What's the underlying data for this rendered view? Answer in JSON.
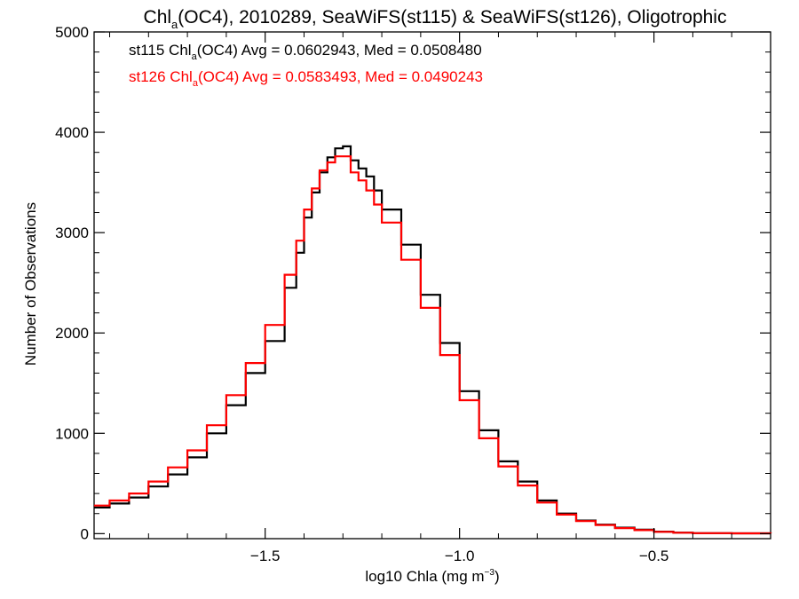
{
  "chart_data": {
    "type": "line",
    "title": {
      "pre": "Chl",
      "sub": "a",
      "post": "(OC4), 2010289, SeaWiFS(st115) & SeaWiFS(st126), Oligotrophic"
    },
    "xlabel": {
      "pre": "log10 Chla (mg m",
      "sup": "−3",
      "post": ")"
    },
    "ylabel": "Number of Observations",
    "xlim": [
      -1.94,
      -0.2
    ],
    "ylim": [
      -50,
      5000
    ],
    "xticks": [
      {
        "value": -1.5,
        "label": "−1.5"
      },
      {
        "value": -1.0,
        "label": "−1.0"
      },
      {
        "value": -0.5,
        "label": "−0.5"
      }
    ],
    "yticks": [
      {
        "value": 0,
        "label": "0"
      },
      {
        "value": 1000,
        "label": "1000"
      },
      {
        "value": 2000,
        "label": "2000"
      },
      {
        "value": 3000,
        "label": "3000"
      },
      {
        "value": 4000,
        "label": "4000"
      },
      {
        "value": 5000,
        "label": "5000"
      }
    ],
    "annotations": [
      {
        "pre": "st115 Chl",
        "sub": "a",
        "post": "(OC4) Avg = 0.0602943, Med = 0.0508480",
        "color": "#000000"
      },
      {
        "pre": "st126 Chl",
        "sub": "a",
        "post": "(OC4) Avg = 0.0583493, Med = 0.0490243",
        "color": "#ff0000"
      }
    ],
    "series": [
      {
        "color": "#000000",
        "x": [
          -1.94,
          -1.9,
          -1.85,
          -1.8,
          -1.75,
          -1.7,
          -1.65,
          -1.6,
          -1.55,
          -1.5,
          -1.45,
          -1.42,
          -1.4,
          -1.38,
          -1.36,
          -1.34,
          -1.32,
          -1.3,
          -1.28,
          -1.26,
          -1.24,
          -1.22,
          -1.2,
          -1.15,
          -1.1,
          -1.05,
          -1.0,
          -0.95,
          -0.9,
          -0.85,
          -0.8,
          -0.75,
          -0.7,
          -0.65,
          -0.6,
          -0.55,
          -0.5,
          -0.45,
          -0.4,
          -0.3,
          -0.2
        ],
        "y": [
          260,
          300,
          360,
          470,
          590,
          760,
          1000,
          1280,
          1600,
          1920,
          2450,
          2800,
          3150,
          3400,
          3600,
          3750,
          3840,
          3860,
          3720,
          3640,
          3560,
          3420,
          3230,
          2880,
          2380,
          1900,
          1420,
          1030,
          720,
          520,
          330,
          200,
          130,
          90,
          60,
          40,
          20,
          10,
          5,
          3,
          2
        ]
      },
      {
        "color": "#ff0000",
        "x": [
          -1.94,
          -1.9,
          -1.85,
          -1.8,
          -1.75,
          -1.7,
          -1.65,
          -1.6,
          -1.55,
          -1.5,
          -1.45,
          -1.42,
          -1.4,
          -1.38,
          -1.36,
          -1.34,
          -1.32,
          -1.3,
          -1.28,
          -1.26,
          -1.24,
          -1.22,
          -1.2,
          -1.15,
          -1.1,
          -1.05,
          -1.0,
          -0.95,
          -0.9,
          -0.85,
          -0.8,
          -0.75,
          -0.7,
          -0.65,
          -0.6,
          -0.55,
          -0.5,
          -0.45,
          -0.4,
          -0.3,
          -0.2
        ],
        "y": [
          280,
          330,
          400,
          520,
          660,
          830,
          1080,
          1380,
          1700,
          2080,
          2580,
          2920,
          3230,
          3440,
          3620,
          3700,
          3760,
          3760,
          3600,
          3520,
          3420,
          3280,
          3100,
          2730,
          2250,
          1780,
          1330,
          950,
          670,
          480,
          310,
          190,
          125,
          85,
          55,
          35,
          18,
          9,
          5,
          3,
          2
        ]
      }
    ]
  }
}
